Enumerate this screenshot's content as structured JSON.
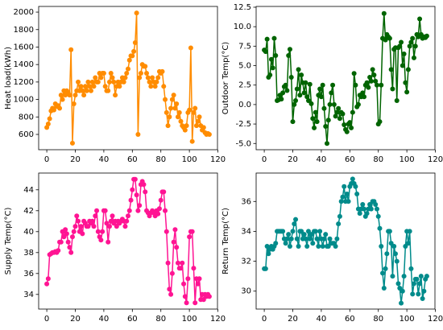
{
  "chart_data": [
    {
      "type": "line",
      "ylabel": "Heat load(kWh)",
      "color": "#ff8c00",
      "x": [
        0,
        1,
        2,
        3,
        4,
        5,
        6,
        7,
        8,
        9,
        10,
        11,
        12,
        13,
        14,
        15,
        16,
        17,
        18,
        19,
        20,
        21,
        22,
        23,
        24,
        25,
        26,
        27,
        28,
        29,
        30,
        31,
        32,
        33,
        34,
        35,
        36,
        37,
        38,
        39,
        40,
        41,
        42,
        43,
        44,
        45,
        46,
        47,
        48,
        49,
        50,
        51,
        52,
        53,
        54,
        55,
        56,
        57,
        58,
        59,
        60,
        61,
        62,
        63,
        64,
        65,
        66,
        67,
        68,
        69,
        70,
        71,
        72,
        73,
        74,
        75,
        76,
        77,
        78,
        79,
        80,
        81,
        82,
        83,
        84,
        85,
        86,
        87,
        88,
        89,
        90,
        91,
        92,
        93,
        94,
        95,
        96,
        97,
        98,
        99,
        100,
        101,
        102,
        103,
        104,
        105,
        106,
        107,
        108,
        109,
        110,
        111,
        112,
        113,
        114
      ],
      "values": [
        680,
        720,
        780,
        870,
        900,
        880,
        950,
        920,
        930,
        900,
        1050,
        1000,
        1100,
        1050,
        1100,
        1080,
        1050,
        1570,
        500,
        950,
        1050,
        1100,
        1200,
        1100,
        1150,
        1100,
        1050,
        1150,
        1100,
        1200,
        1150,
        1100,
        1200,
        1150,
        1250,
        1200,
        1200,
        1300,
        1250,
        1300,
        1300,
        1150,
        1100,
        1100,
        1200,
        1300,
        1250,
        1200,
        1050,
        1150,
        1200,
        1150,
        1200,
        1250,
        1200,
        1250,
        1300,
        1350,
        1450,
        1500,
        1500,
        1550,
        1650,
        1990,
        600,
        1250,
        1300,
        1400,
        1380,
        1380,
        1300,
        1250,
        1200,
        1150,
        1250,
        1200,
        1150,
        1200,
        1250,
        1320,
        1300,
        1320,
        1150,
        1000,
        850,
        700,
        800,
        900,
        1000,
        1050,
        900,
        950,
        800,
        850,
        750,
        700,
        680,
        650,
        700,
        850,
        880,
        1590,
        520,
        850,
        900,
        700,
        750,
        800,
        700,
        650,
        680,
        620,
        600,
        610,
        600
      ],
      "xlim": [
        -5.7,
        119.7
      ],
      "xticks": [
        0,
        20,
        40,
        60,
        80,
        100,
        120
      ],
      "ylim": [
        425,
        2065
      ],
      "yticks": [
        600,
        800,
        1000,
        1200,
        1400,
        1600,
        1800,
        2000
      ]
    },
    {
      "type": "line",
      "ylabel": "Outdoor Temp(°C)",
      "color": "#006400",
      "x": [
        0,
        1,
        2,
        3,
        4,
        5,
        6,
        7,
        8,
        9,
        10,
        11,
        12,
        13,
        14,
        15,
        16,
        17,
        18,
        19,
        20,
        21,
        22,
        23,
        24,
        25,
        26,
        27,
        28,
        29,
        30,
        31,
        32,
        33,
        34,
        35,
        36,
        37,
        38,
        39,
        40,
        41,
        42,
        43,
        44,
        45,
        46,
        47,
        48,
        49,
        50,
        51,
        52,
        53,
        54,
        55,
        56,
        57,
        58,
        59,
        60,
        61,
        62,
        63,
        64,
        65,
        66,
        67,
        68,
        69,
        70,
        71,
        72,
        73,
        74,
        75,
        76,
        77,
        78,
        79,
        80,
        81,
        82,
        83,
        84,
        85,
        86,
        87,
        88,
        89,
        90,
        91,
        92,
        93,
        94,
        95,
        96,
        97,
        98,
        99,
        100,
        101,
        102,
        103,
        104,
        105,
        106,
        107,
        108,
        109,
        110,
        111,
        112,
        113,
        114
      ],
      "values": [
        7,
        6.8,
        8.4,
        3.5,
        3.8,
        5.8,
        4.7,
        8.5,
        6.3,
        0.5,
        0.6,
        1.2,
        0.7,
        1.5,
        2.3,
        2.5,
        1.8,
        6.3,
        7.1,
        3.5,
        -2.2,
        0,
        0.5,
        2,
        4.5,
        1.2,
        3.8,
        2.8,
        1.5,
        2.8,
        1,
        0.5,
        2.6,
        0.1,
        -1.8,
        -3,
        -1,
        -2.2,
        1.2,
        2,
        1,
        2.5,
        -0.5,
        -2.8,
        -5,
        -2,
        0,
        1.5,
        2.5,
        0,
        -1.5,
        -1,
        -0.5,
        -1.8,
        -1,
        -1.2,
        -2.6,
        -3.2,
        -3.5,
        -2.5,
        -2.3,
        -3,
        -1,
        4,
        2.5,
        -0.3,
        0,
        1.2,
        1,
        1.5,
        1,
        2.5,
        2.8,
        2.2,
        3.5,
        3,
        4.5,
        3.8,
        3,
        2.5,
        -2.5,
        -2.2,
        2.5,
        8.5,
        11.7,
        8.3,
        9,
        8.7,
        8.5,
        4.5,
        2,
        7.1,
        7.3,
        0.5,
        7.3,
        7.5,
        8,
        5,
        6.5,
        2.8,
        1.6,
        4.5,
        7.5,
        8,
        8.5,
        6,
        7.5,
        9,
        8.7,
        11,
        9,
        8.5,
        8.7,
        8.6,
        8.8
      ],
      "xlim": [
        -5.7,
        119.7
      ],
      "xticks": [
        0,
        20,
        40,
        60,
        80,
        100,
        120
      ],
      "ylim": [
        -5.8,
        12.6
      ],
      "yticks": [
        {
          "value": -5,
          "label": "-5.0"
        },
        {
          "value": -2.5,
          "label": "-2.5"
        },
        {
          "value": 0,
          "label": "0.0"
        },
        {
          "value": 2.5,
          "label": "2.5"
        },
        {
          "value": 5,
          "label": "5.0"
        },
        {
          "value": 7.5,
          "label": "7.5"
        },
        {
          "value": 10,
          "label": "10.0"
        },
        {
          "value": 12.5,
          "label": "12.5"
        }
      ]
    },
    {
      "type": "line",
      "ylabel": "Supply Temp(°C)",
      "color": "#ff1493",
      "x": [
        0,
        1,
        2,
        3,
        4,
        5,
        6,
        7,
        8,
        9,
        10,
        11,
        12,
        13,
        14,
        15,
        16,
        17,
        18,
        19,
        20,
        21,
        22,
        23,
        24,
        25,
        26,
        27,
        28,
        29,
        30,
        31,
        32,
        33,
        34,
        35,
        36,
        37,
        38,
        39,
        40,
        41,
        42,
        43,
        44,
        45,
        46,
        47,
        48,
        49,
        50,
        51,
        52,
        53,
        54,
        55,
        56,
        57,
        58,
        59,
        60,
        61,
        62,
        63,
        64,
        65,
        66,
        67,
        68,
        69,
        70,
        71,
        72,
        73,
        74,
        75,
        76,
        77,
        78,
        79,
        80,
        81,
        82,
        83,
        84,
        85,
        86,
        87,
        88,
        89,
        90,
        91,
        92,
        93,
        94,
        95,
        96,
        97,
        98,
        99,
        100,
        101,
        102,
        103,
        104,
        105,
        106,
        107,
        108,
        109,
        110,
        111,
        112,
        113,
        114
      ],
      "values": [
        35,
        35.5,
        37.8,
        37.9,
        38,
        38,
        38.1,
        38,
        38.2,
        39,
        39,
        40,
        39.5,
        40.2,
        39.8,
        39,
        38.5,
        38,
        39.5,
        40,
        40.5,
        41.5,
        41,
        40,
        40.5,
        39.8,
        41,
        40.8,
        40.5,
        40.5,
        41,
        40.8,
        41,
        40.5,
        41.5,
        42,
        40,
        39.5,
        39.2,
        40,
        42,
        42,
        40.8,
        39,
        40.5,
        41,
        41.5,
        40.8,
        41,
        40.5,
        41,
        40.8,
        41,
        41.2,
        41,
        40.5,
        41,
        41.5,
        42,
        43,
        44,
        45,
        45,
        43.5,
        42,
        42.5,
        44.5,
        44.8,
        44.5,
        43.8,
        42,
        41.8,
        41.5,
        41.8,
        42,
        41.8,
        41.5,
        42,
        41.7,
        42.2,
        43,
        43.8,
        43.8,
        42,
        40,
        37,
        34.5,
        34,
        36,
        39,
        40.2,
        38.5,
        37,
        36.5,
        36.5,
        37,
        35,
        33.8,
        33.2,
        35.5,
        39.5,
        40,
        40,
        36.5,
        33.2,
        35.5,
        35,
        35.5,
        33.5,
        34,
        33.5,
        34,
        33.8,
        34,
        33.8
      ],
      "xlim": [
        -5.7,
        119.7
      ],
      "xticks": [
        0,
        20,
        40,
        60,
        80,
        100,
        120
      ],
      "ylim": [
        32.6,
        45.6
      ],
      "yticks": [
        34,
        36,
        38,
        40,
        42,
        44
      ]
    },
    {
      "type": "line",
      "ylabel": "Return Temp(°C)",
      "color": "#008b8b",
      "x": [
        0,
        1,
        2,
        3,
        4,
        5,
        6,
        7,
        8,
        9,
        10,
        11,
        12,
        13,
        14,
        15,
        16,
        17,
        18,
        19,
        20,
        21,
        22,
        23,
        24,
        25,
        26,
        27,
        28,
        29,
        30,
        31,
        32,
        33,
        34,
        35,
        36,
        37,
        38,
        39,
        40,
        41,
        42,
        43,
        44,
        45,
        46,
        47,
        48,
        49,
        50,
        51,
        52,
        53,
        54,
        55,
        56,
        57,
        58,
        59,
        60,
        61,
        62,
        63,
        64,
        65,
        66,
        67,
        68,
        69,
        70,
        71,
        72,
        73,
        74,
        75,
        76,
        77,
        78,
        79,
        80,
        81,
        82,
        83,
        84,
        85,
        86,
        87,
        88,
        89,
        90,
        91,
        92,
        93,
        94,
        95,
        96,
        97,
        98,
        99,
        100,
        101,
        102,
        103,
        104,
        105,
        106,
        107,
        108,
        109,
        110,
        111,
        112,
        113,
        114
      ],
      "values": [
        31.5,
        31.5,
        33,
        32.5,
        32.8,
        33,
        32.8,
        33,
        33.2,
        34,
        34,
        34,
        34,
        34,
        33.5,
        33.2,
        33.5,
        33.8,
        33,
        33.5,
        34,
        34.5,
        34.8,
        33.5,
        33,
        34,
        34,
        33.5,
        33.8,
        33.5,
        33,
        34,
        33.5,
        33.8,
        33.2,
        34,
        34,
        33.5,
        33,
        34,
        33.5,
        33,
        33.5,
        33.8,
        33,
        33,
        33.5,
        33.2,
        33.2,
        33.2,
        33,
        33.5,
        34.5,
        35,
        36,
        36.3,
        37,
        36,
        36.5,
        36,
        37,
        37.2,
        37.5,
        37.2,
        37,
        36.5,
        35.5,
        35.2,
        35.5,
        35.8,
        35.5,
        35,
        35.2,
        35.5,
        35.8,
        35.5,
        36,
        36,
        35.8,
        35.5,
        35,
        34.2,
        33,
        31.2,
        30.2,
        31.5,
        32.5,
        34,
        34,
        33.2,
        31,
        33,
        32.5,
        32,
        30.5,
        30.2,
        29.2,
        30,
        31,
        33,
        34,
        33.2,
        34,
        31.5,
        29.8,
        30.5,
        30.8,
        30.8,
        29.8,
        30.5,
        31,
        29.5,
        30,
        30.8,
        31
      ],
      "xlim": [
        -5.7,
        119.7
      ],
      "xticks": [
        0,
        20,
        40,
        60,
        80,
        100,
        120
      ],
      "ylim": [
        28.8,
        37.9
      ],
      "yticks": [
        30,
        32,
        34,
        36
      ]
    }
  ]
}
